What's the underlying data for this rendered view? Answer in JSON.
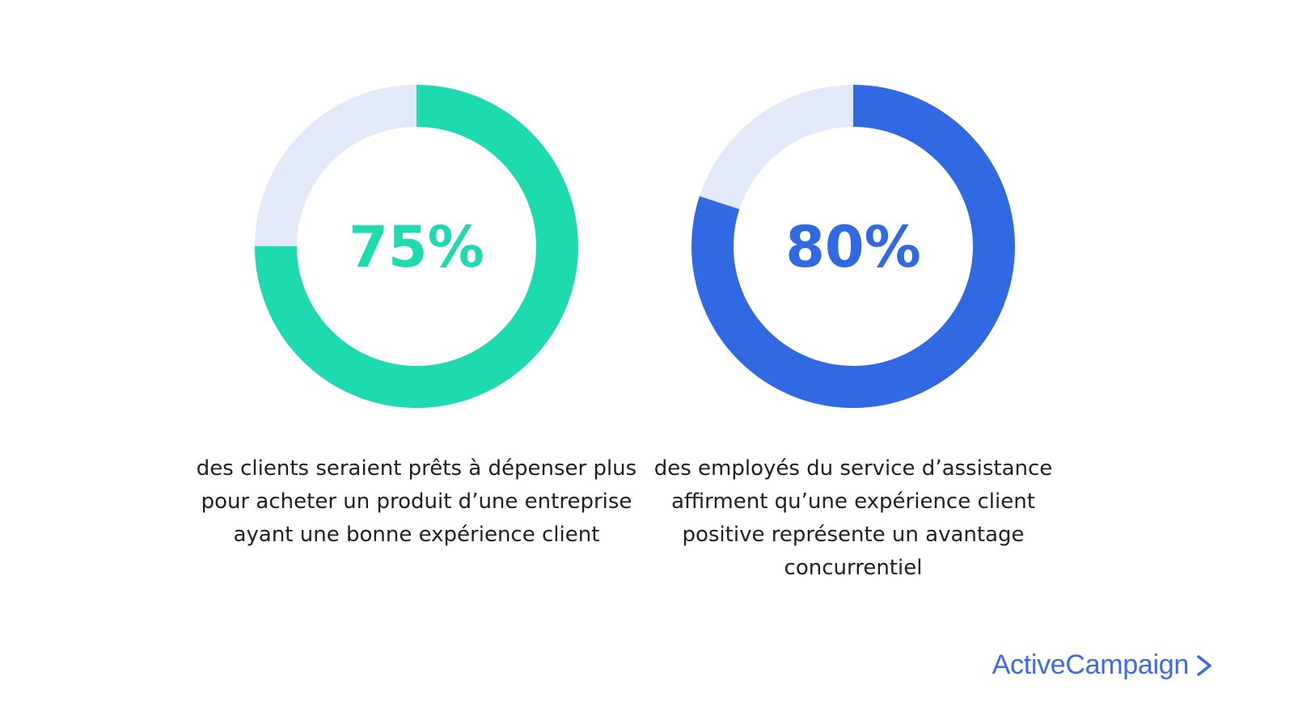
{
  "chart_data": [
    {
      "type": "pie",
      "values": [
        75,
        25
      ],
      "center_label": "75%",
      "caption": "des clients seraient prêts à dépenser plus pour acheter un produit d’une entreprise ayant une bonne expérience client",
      "colors": {
        "value": "#1ddbae",
        "remainder": "#e4e9fa"
      }
    },
    {
      "type": "pie",
      "values": [
        80,
        20
      ],
      "center_label": "80%",
      "caption": "des employés du service d’assistance affirment qu’une expérience client positive représente un avantage concurrentiel",
      "colors": {
        "value": "#3169e3",
        "remainder": "#e4e9fa"
      }
    }
  ],
  "brand": {
    "name": "ActiveCampaign",
    "icon": "chevron-right-icon",
    "color": "#3d6ae6"
  }
}
